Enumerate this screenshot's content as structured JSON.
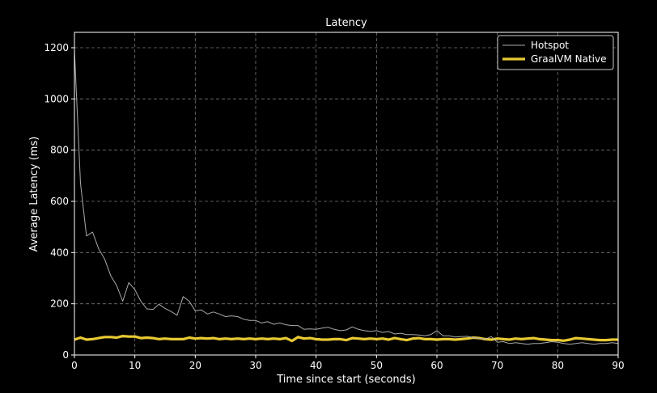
{
  "chart_data": {
    "type": "line",
    "title": "Latency",
    "xlabel": "Time since start (seconds)",
    "ylabel": "Average Latency (ms)",
    "xlim": [
      0,
      90
    ],
    "ylim": [
      0,
      1260
    ],
    "xticks": [
      0,
      10,
      20,
      30,
      40,
      50,
      60,
      70,
      80,
      90
    ],
    "yticks": [
      0,
      200,
      400,
      600,
      800,
      1000,
      1200
    ],
    "grid": true,
    "legend_position": "top-right",
    "background": "#000000",
    "series": [
      {
        "name": "Hotspot",
        "color": "#aaaaaa",
        "x": [
          0,
          1,
          2,
          3,
          4,
          5,
          6,
          7,
          8,
          9,
          10,
          11,
          12,
          13,
          14,
          15,
          16,
          17,
          18,
          19,
          20,
          21,
          22,
          23,
          24,
          25,
          26,
          27,
          28,
          29,
          30,
          31,
          32,
          33,
          34,
          35,
          36,
          37,
          38,
          39,
          40,
          41,
          42,
          43,
          44,
          45,
          46,
          47,
          48,
          49,
          50,
          51,
          52,
          53,
          54,
          55,
          56,
          57,
          58,
          59,
          60,
          61,
          62,
          63,
          64,
          65,
          66,
          67,
          68,
          69,
          70,
          71,
          72,
          73,
          74,
          75,
          76,
          77,
          78,
          79,
          80,
          81,
          82,
          83,
          84,
          85,
          86,
          87,
          88,
          89,
          90
        ],
        "y": [
          1190,
          670,
          465,
          480,
          415,
          375,
          310,
          270,
          210,
          283,
          255,
          210,
          180,
          178,
          198,
          182,
          170,
          155,
          228,
          210,
          172,
          176,
          160,
          168,
          160,
          150,
          153,
          150,
          140,
          135,
          135,
          125,
          130,
          120,
          125,
          118,
          115,
          115,
          100,
          102,
          100,
          105,
          108,
          100,
          95,
          98,
          110,
          100,
          95,
          92,
          95,
          88,
          92,
          82,
          85,
          80,
          80,
          78,
          75,
          80,
          95,
          75,
          75,
          70,
          72,
          73,
          68,
          65,
          62,
          72,
          50,
          52,
          45,
          48,
          45,
          42,
          45,
          45,
          48,
          52,
          50,
          45,
          42,
          45,
          48,
          45,
          42,
          45,
          45,
          48,
          45
        ]
      },
      {
        "name": "GraalVM Native",
        "color": "#e8c933",
        "x": [
          0,
          1,
          2,
          3,
          4,
          5,
          6,
          7,
          8,
          9,
          10,
          11,
          12,
          13,
          14,
          15,
          16,
          17,
          18,
          19,
          20,
          21,
          22,
          23,
          24,
          25,
          26,
          27,
          28,
          29,
          30,
          31,
          32,
          33,
          34,
          35,
          36,
          37,
          38,
          39,
          40,
          41,
          42,
          43,
          44,
          45,
          46,
          47,
          48,
          49,
          50,
          51,
          52,
          53,
          54,
          55,
          56,
          57,
          58,
          59,
          60,
          61,
          62,
          63,
          64,
          65,
          66,
          67,
          68,
          69,
          70,
          71,
          72,
          73,
          74,
          75,
          76,
          77,
          78,
          79,
          80,
          81,
          82,
          83,
          84,
          85,
          86,
          87,
          88,
          89,
          90
        ],
        "y": [
          60,
          68,
          60,
          62,
          66,
          70,
          70,
          68,
          74,
          72,
          72,
          66,
          68,
          66,
          62,
          64,
          62,
          62,
          62,
          68,
          64,
          66,
          64,
          66,
          62,
          64,
          62,
          64,
          62,
          64,
          62,
          64,
          62,
          64,
          62,
          66,
          55,
          70,
          64,
          66,
          62,
          60,
          60,
          62,
          62,
          58,
          66,
          64,
          62,
          64,
          62,
          64,
          60,
          66,
          62,
          58,
          64,
          66,
          62,
          62,
          60,
          62,
          62,
          60,
          62,
          64,
          68,
          66,
          62,
          60,
          64,
          62,
          60,
          64,
          62,
          64,
          66,
          62,
          60,
          58,
          58,
          56,
          60,
          66,
          64,
          62,
          60,
          58,
          58,
          60,
          60
        ]
      }
    ]
  }
}
